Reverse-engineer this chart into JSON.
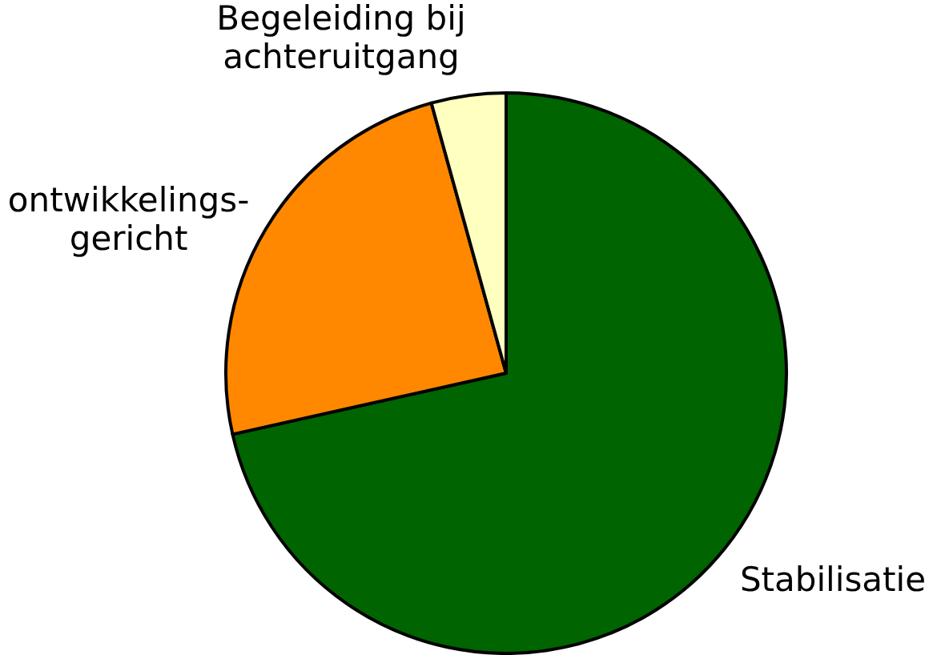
{
  "chart_data": {
    "type": "pie",
    "categories": [
      "Stabilisatie",
      "ontwikkelings-\ngericht",
      "Begeleiding bij\nachteruitgang"
    ],
    "values": [
      71.5,
      24.2,
      4.3
    ],
    "colors": [
      "#006400",
      "#ff8800",
      "#ffffc0"
    ],
    "legend": false
  }
}
